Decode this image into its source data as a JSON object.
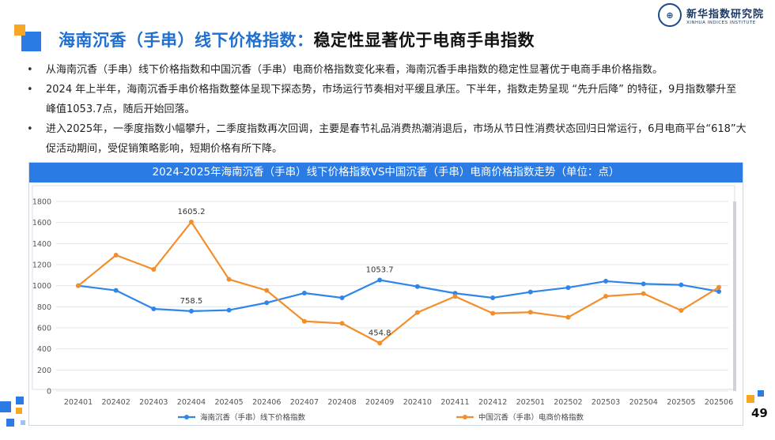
{
  "slide": {
    "title_main": "海南沉香（手串）线下价格指数：",
    "title_sub": "稳定性显著优于电商手串指数",
    "page_number": "49"
  },
  "logo": {
    "name_cn": "新华指数研究院",
    "name_en": "XINHUA INDICES INSTITUTE"
  },
  "bullets": [
    "从海南沉香（手串）线下价格指数和中国沉香（手串）电商价格指数变化来看，海南沉香手串指数的稳定性显著优于电商手串价格指数。",
    "2024 年上半年，海南沉香手串价格指数整体呈现下探态势，市场运行节奏相对平缓且承压。下半年，指数走势呈现 “先升后降” 的特征，9月指数攀升至峰值1053.7点，随后开始回落。",
    "进入2025年，一季度指数小幅攀升，二季度指数再次回调，主要是春节礼品消费热潮消退后，市场从节日性消费状态回归日常运行，6月电商平台“618”大促活动期间，受促销策略影响，短期价格有所下降。"
  ],
  "colors": {
    "accent_blue": "#2B7BE4",
    "accent_orange": "#F5A623",
    "series_offline": "#2F86E8",
    "series_ecommerce": "#F28E2B"
  },
  "chart_data": {
    "type": "line",
    "title": "2024-2025年海南沉香（手串）线下价格指数VS中国沉香（手串）电商价格指数走势（单位：点）",
    "categories": [
      "202401",
      "202402",
      "202403",
      "202404",
      "202405",
      "202406",
      "202407",
      "202408",
      "202409",
      "202410",
      "202411",
      "202412",
      "202501",
      "202502",
      "202503",
      "202504",
      "202505",
      "202506"
    ],
    "ylim": [
      0,
      1800
    ],
    "yticks": [
      0,
      200,
      400,
      600,
      800,
      1000,
      1200,
      1400,
      1600,
      1800
    ],
    "grid": true,
    "legend_position": "bottom",
    "series": [
      {
        "name": "海南沉香（手串）线下价格指数",
        "color": "#2F86E8",
        "values": [
          1000,
          955,
          780,
          758.5,
          768,
          838,
          930,
          885,
          1053.7,
          992,
          928,
          885,
          940,
          982,
          1043,
          1017,
          1008,
          945
        ]
      },
      {
        "name": "中国沉香（手串）电商价格指数",
        "color": "#F28E2B",
        "values": [
          1000,
          1290,
          1155,
          1605.2,
          1060,
          955,
          662,
          642,
          454.8,
          745,
          898,
          738,
          748,
          700,
          900,
          925,
          765,
          985
        ]
      }
    ],
    "data_labels": [
      {
        "series": 0,
        "index": 3,
        "text": "758.5",
        "pos": "above"
      },
      {
        "series": 0,
        "index": 8,
        "text": "1053.7",
        "pos": "above"
      },
      {
        "series": 1,
        "index": 3,
        "text": "1605.2",
        "pos": "above"
      },
      {
        "series": 1,
        "index": 8,
        "text": "454.8",
        "pos": "above"
      }
    ]
  }
}
